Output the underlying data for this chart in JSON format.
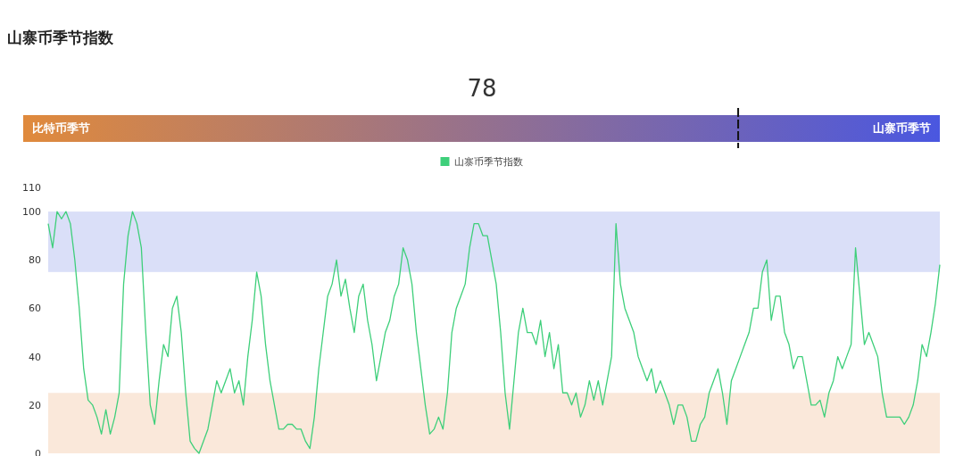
{
  "chart_data": [
    {
      "type": "other",
      "title": "山寨币季节指数",
      "values": [
        78
      ],
      "data_labels": true,
      "annotations": [
        "比特币季节",
        "山寨币季节"
      ]
    },
    {
      "type": "line",
      "categories": [
        null,
        null,
        null,
        null,
        null,
        null,
        null,
        null,
        null,
        null,
        null,
        null,
        null,
        null,
        null,
        null,
        null,
        null,
        null,
        null,
        null,
        null,
        null,
        null,
        null,
        null,
        null,
        null,
        null,
        null,
        null,
        null,
        null,
        null,
        null,
        null,
        null,
        null,
        null,
        null,
        null,
        null,
        null,
        null,
        null,
        null,
        null,
        null,
        null,
        null,
        null,
        null,
        null,
        null,
        null,
        null,
        null,
        null,
        null,
        null,
        null,
        null,
        null,
        null,
        null,
        null,
        null,
        null,
        null,
        null,
        null,
        null,
        null,
        null,
        null,
        null,
        null,
        null,
        null,
        null,
        null,
        null,
        null,
        null,
        null,
        null,
        null,
        null,
        null,
        null,
        null,
        null,
        null,
        null,
        null,
        null,
        null,
        null,
        null,
        null,
        null,
        null,
        null,
        null,
        null,
        null,
        null,
        null,
        null,
        null,
        null,
        null,
        null,
        null,
        null,
        null,
        null,
        null,
        null,
        null,
        null,
        null,
        null,
        null,
        null,
        null,
        null,
        null,
        null,
        null,
        null,
        null,
        null,
        null,
        null,
        null,
        null,
        null,
        null,
        null,
        null,
        null,
        null,
        null,
        null,
        null,
        null,
        null,
        null,
        null,
        null,
        null,
        null,
        null,
        null,
        null,
        null,
        null,
        null,
        null,
        null,
        null,
        null,
        null,
        null,
        null,
        null,
        null,
        null,
        null,
        null,
        null,
        null,
        null,
        null,
        null,
        null,
        null,
        null,
        null,
        null,
        null,
        null,
        null,
        null,
        null,
        null,
        null,
        null,
        null,
        null,
        null,
        null,
        null,
        null,
        null,
        null,
        null,
        null,
        null,
        null,
        null
      ],
      "series": [
        {
          "name": "山寨币季节指数",
          "color": "#3ecf7a",
          "values": [
            95,
            85,
            100,
            97,
            100,
            95,
            80,
            60,
            35,
            22,
            20,
            15,
            8,
            18,
            8,
            15,
            25,
            70,
            90,
            100,
            95,
            85,
            50,
            20,
            12,
            30,
            45,
            40,
            60,
            65,
            50,
            25,
            5,
            2,
            0,
            5,
            10,
            20,
            30,
            25,
            30,
            35,
            25,
            30,
            20,
            40,
            55,
            75,
            65,
            45,
            30,
            20,
            10,
            10,
            12,
            12,
            10,
            10,
            5,
            2,
            15,
            35,
            50,
            65,
            70,
            80,
            65,
            72,
            60,
            50,
            65,
            70,
            55,
            45,
            30,
            40,
            50,
            55,
            65,
            70,
            85,
            80,
            70,
            50,
            35,
            20,
            8,
            10,
            15,
            10,
            25,
            50,
            60,
            65,
            70,
            85,
            95,
            95,
            90,
            90,
            80,
            70,
            50,
            25,
            10,
            30,
            50,
            60,
            50,
            50,
            45,
            55,
            40,
            50,
            35,
            45,
            25,
            25,
            20,
            25,
            15,
            20,
            30,
            22,
            30,
            20,
            30,
            40,
            95,
            70,
            60,
            55,
            50,
            40,
            35,
            30,
            35,
            25,
            30,
            25,
            20,
            12,
            20,
            20,
            15,
            5,
            5,
            12,
            15,
            25,
            30,
            35,
            25,
            12,
            30,
            35,
            40,
            45,
            50,
            60,
            60,
            75,
            80,
            55,
            65,
            65,
            50,
            45,
            35,
            40,
            40,
            30,
            20,
            20,
            22,
            15,
            25,
            30,
            40,
            35,
            40,
            45,
            85,
            65,
            45,
            50,
            45,
            40,
            25,
            15,
            15,
            15,
            15,
            12,
            15,
            20,
            30,
            45,
            40,
            50,
            62,
            78
          ]
        }
      ],
      "ylim": [
        0,
        110
      ],
      "yticks": [
        0,
        20,
        40,
        60,
        80,
        100,
        110
      ],
      "bands": [
        {
          "axis": "y",
          "from": 75,
          "to": 100,
          "color": "#dadff8"
        },
        {
          "axis": "y",
          "from": 0,
          "to": 25,
          "color": "#fae8da"
        }
      ],
      "legend": "top",
      "grid": false,
      "marker": "none",
      "tick_labels": "y"
    }
  ]
}
